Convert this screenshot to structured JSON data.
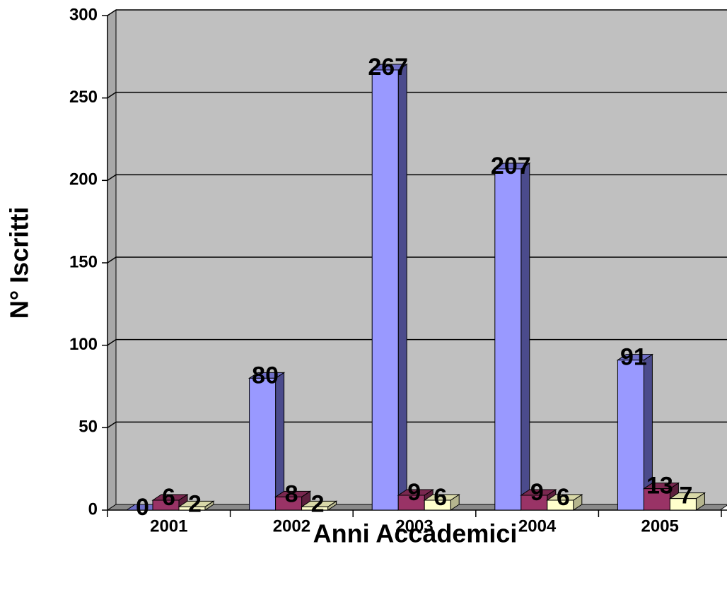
{
  "chart_data": {
    "type": "bar",
    "xlabel": "Anni Accademici",
    "ylabel": "N° Iscritti",
    "categories": [
      "2001",
      "2002",
      "2003",
      "2004",
      "2005"
    ],
    "series": [
      {
        "values": [
          0,
          80,
          267,
          207,
          91
        ]
      },
      {
        "values": [
          6,
          8,
          9,
          9,
          13
        ]
      },
      {
        "values": [
          2,
          2,
          6,
          6,
          7
        ]
      }
    ],
    "ylim": [
      0,
      300
    ],
    "yticks": [
      "0",
      "50",
      "100",
      "150",
      "200",
      "250",
      "300"
    ],
    "grid": true,
    "colors": {
      "series": [
        "#9999FF",
        "#993366",
        "#FFFFCC"
      ],
      "series_side": [
        "#4B4B8C",
        "#5C1F3D",
        "#B5B58E"
      ],
      "series_top": [
        "#6F6FC8",
        "#7A2850",
        "#D8D8A8"
      ],
      "wall": "#C0C0C0",
      "wall_side": "#A8A8A8",
      "floor": "#8A8A8A"
    }
  }
}
